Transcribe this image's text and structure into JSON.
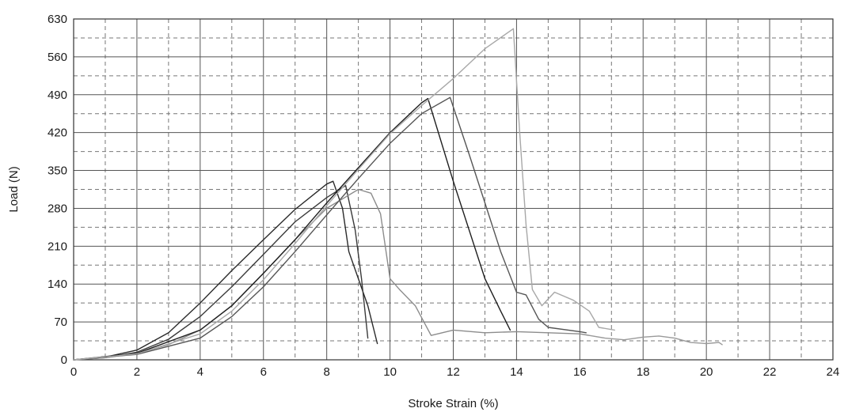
{
  "chart_data": {
    "type": "line",
    "title": "",
    "xlabel": "Stroke Strain (%)",
    "ylabel": "Load (N)",
    "xlim": [
      0,
      24
    ],
    "ylim": [
      0,
      630
    ],
    "xticks": [
      0,
      2,
      4,
      6,
      8,
      10,
      12,
      14,
      16,
      18,
      20,
      22,
      24
    ],
    "yticks": [
      0,
      70,
      140,
      210,
      280,
      350,
      420,
      490,
      560,
      630
    ],
    "grid": true,
    "legend": "none",
    "series": [
      {
        "color": "#2a2a2a",
        "x": [
          0,
          1,
          2,
          3,
          4,
          5,
          6,
          7,
          8,
          8.2,
          8.5,
          8.7,
          9.0,
          9.3,
          9.6
        ],
        "y": [
          0,
          5,
          18,
          50,
          105,
          165,
          222,
          278,
          325,
          330,
          280,
          200,
          150,
          100,
          30
        ]
      },
      {
        "color": "#3a3a3a",
        "x": [
          0,
          1,
          2,
          3,
          4,
          5,
          6,
          7,
          8,
          8.6,
          8.9,
          9.1,
          9.3
        ],
        "y": [
          0,
          4,
          14,
          38,
          80,
          135,
          195,
          255,
          300,
          322,
          240,
          150,
          40
        ]
      },
      {
        "color": "#8c8c8c",
        "x": [
          0,
          1,
          2,
          3,
          4,
          5,
          6,
          7,
          8,
          9,
          9.4,
          9.7,
          10.0,
          10.3,
          10.8,
          11.3,
          12,
          13,
          14,
          15,
          16,
          16.3
        ],
        "y": [
          0,
          4,
          12,
          28,
          55,
          100,
          160,
          222,
          280,
          315,
          308,
          270,
          150,
          130,
          100,
          45,
          55,
          50,
          52,
          50,
          48,
          45
        ]
      },
      {
        "color": "#1e1e1e",
        "x": [
          0,
          2,
          4,
          5,
          6,
          7,
          8,
          9,
          10,
          11,
          11.2,
          12,
          12.5,
          13,
          13.5,
          13.8
        ],
        "y": [
          0,
          12,
          55,
          100,
          160,
          222,
          290,
          355,
          420,
          475,
          483,
          330,
          240,
          150,
          90,
          55
        ]
      },
      {
        "color": "#555555",
        "x": [
          0,
          2,
          4,
          5,
          6,
          7,
          8,
          9,
          10,
          11,
          11.9,
          12.5,
          13,
          13.5,
          14,
          14.3,
          14.7,
          15,
          16,
          16.2
        ],
        "y": [
          0,
          10,
          40,
          80,
          135,
          200,
          268,
          335,
          400,
          455,
          485,
          380,
          290,
          200,
          125,
          120,
          75,
          60,
          52,
          50
        ]
      },
      {
        "color": "#a8a8a8",
        "x": [
          0,
          2,
          4,
          5,
          6,
          7,
          8,
          9,
          10,
          11,
          12,
          13,
          13.9,
          14.1,
          14.3,
          14.5,
          14.8,
          15.2,
          15.8,
          16.3,
          16.6,
          17.1
        ],
        "y": [
          0,
          11,
          48,
          90,
          148,
          215,
          285,
          352,
          418,
          470,
          520,
          575,
          612,
          420,
          250,
          130,
          100,
          125,
          110,
          90,
          60,
          55
        ]
      },
      {
        "color": "#9a9a9a",
        "x": [
          16.3,
          16.8,
          17.4,
          18,
          18.5,
          19,
          19.5,
          20,
          20.4,
          20.5
        ],
        "y": [
          45,
          40,
          37,
          42,
          44,
          40,
          32,
          30,
          32,
          28
        ]
      }
    ]
  }
}
